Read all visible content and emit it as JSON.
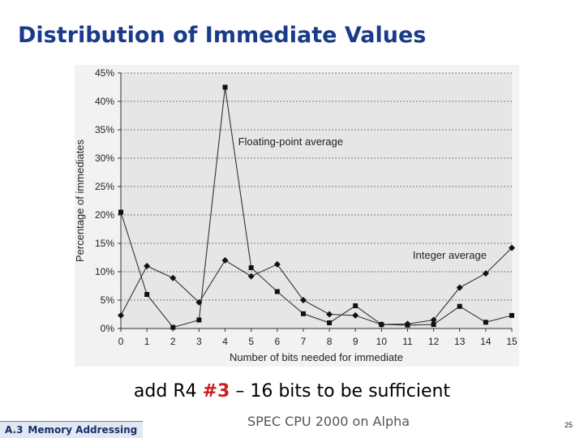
{
  "slide": {
    "title": "Distribution of Immediate Values",
    "caption_before": "add R4 ",
    "caption_highlight": "#3",
    "caption_after": " – 16 bits to be sufficient",
    "footer_section_num": "A.3",
    "footer_section_title": "Memory Addressing",
    "footer_source": "SPEC CPU 2000 on Alpha",
    "slide_number": "25"
  },
  "colors": {
    "title": "#1a3a8a",
    "highlight": "#cc1f1f",
    "plot_background": "#e6e6e6",
    "series_line": "#333333"
  },
  "chart_data": {
    "type": "line",
    "title": "",
    "xlabel": "Number of bits needed for immediate",
    "ylabel": "Percentage of immediates",
    "x": [
      0,
      1,
      2,
      3,
      4,
      5,
      6,
      7,
      8,
      9,
      10,
      11,
      12,
      13,
      14,
      15
    ],
    "xlim": [
      0,
      15
    ],
    "ylim": [
      0,
      45
    ],
    "y_ticks": [
      0,
      5,
      10,
      15,
      20,
      25,
      30,
      35,
      40,
      45
    ],
    "y_tick_labels": [
      "0%",
      "5%",
      "10%",
      "15%",
      "20%",
      "25%",
      "30%",
      "35%",
      "40%",
      "45%"
    ],
    "x_tick_labels": [
      "0",
      "1",
      "2",
      "3",
      "4",
      "5",
      "6",
      "7",
      "8",
      "9",
      "10",
      "11",
      "12",
      "13",
      "14",
      "15"
    ],
    "grid": "horizontal dashed",
    "series": [
      {
        "name": "Floating-point average",
        "marker": "square",
        "values": [
          20.5,
          6.0,
          0.2,
          1.5,
          42.5,
          10.7,
          6.5,
          2.6,
          1.0,
          4.0,
          0.7,
          0.6,
          0.7,
          3.9,
          1.1,
          2.3
        ]
      },
      {
        "name": "Integer average",
        "marker": "diamond",
        "values": [
          2.3,
          11.0,
          8.9,
          4.6,
          12.0,
          9.2,
          11.3,
          5.0,
          2.5,
          2.3,
          0.7,
          0.8,
          1.5,
          7.2,
          9.7,
          14.2
        ]
      }
    ]
  }
}
